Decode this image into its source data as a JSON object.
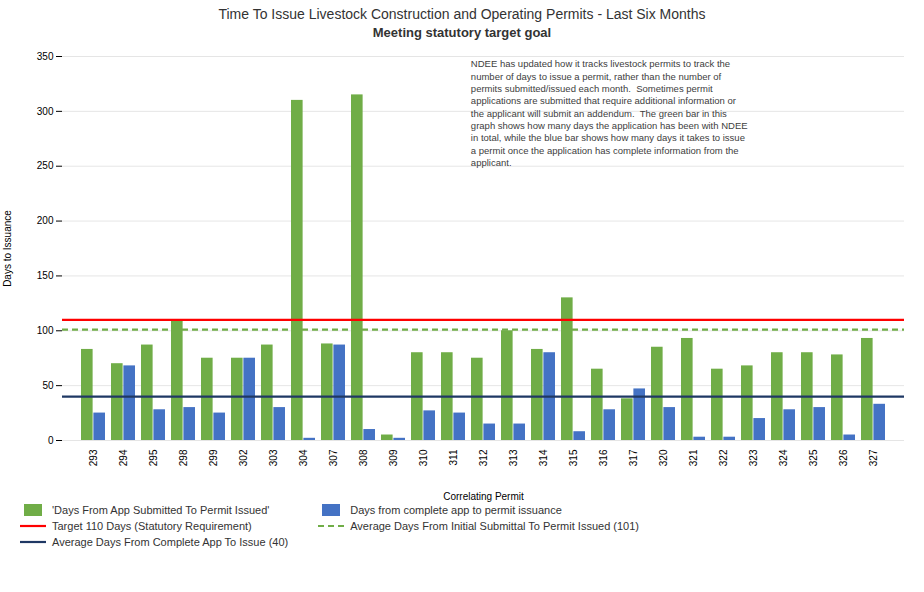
{
  "chart_data": {
    "type": "bar",
    "title": "Time To Issue Livestock Construction and Operating Permits - Last Six Months",
    "subtitle": "Meeting statutory target goal",
    "xlabel": "Correlating Permit",
    "ylabel": "Days to Issuance",
    "categories": [
      "293",
      "294",
      "295",
      "298",
      "299",
      "302",
      "303",
      "304",
      "307",
      "308",
      "309",
      "310",
      "311",
      "312",
      "313",
      "314",
      "315",
      "316",
      "317",
      "320",
      "321",
      "322",
      "323",
      "324",
      "325",
      "326",
      "327"
    ],
    "series": [
      {
        "name": "'Days From App Submitted To Permit Issued'",
        "color": "#70AD47",
        "values": [
          83,
          70,
          87,
          110,
          75,
          75,
          87,
          310,
          88,
          315,
          5,
          80,
          80,
          75,
          100,
          83,
          130,
          65,
          38,
          85,
          93,
          65,
          68,
          80,
          80,
          78,
          93
        ]
      },
      {
        "name": "Days from complete app to permit issuance",
        "color": "#4472C4",
        "values": [
          25,
          68,
          28,
          30,
          25,
          75,
          30,
          2,
          87,
          10,
          2,
          27,
          25,
          15,
          15,
          80,
          8,
          28,
          47,
          30,
          3,
          3,
          20,
          28,
          30,
          5,
          33
        ]
      }
    ],
    "reference_lines": [
      {
        "name": "Target 110 Days (Statutory Requirement)",
        "value": 110,
        "color": "#FF0000",
        "line_style": "solid"
      },
      {
        "name": "Average Days From Initial Submittal To Permit Issued (101)",
        "value": 101,
        "color": "#70AD47",
        "line_style": "dashed"
      },
      {
        "name": "Average Days From Complete App To Issue (40)",
        "value": 40,
        "color": "#1F3864",
        "line_style": "solid"
      }
    ],
    "annotation": "NDEE has updated how it tracks livestock permits to track the\nnumber of days to issue a permit, rather than the number of\npermits submitted/issued each month.  Sometimes permit\napplications are submitted that require additional information or\nthe applicant will submit an addendum.  The green bar in this\ngraph shows how many days the application has been with NDEE\nin total, while the blue bar shows how many days it takes to issue\na permit once the application has complete information from the\napplicant.",
    "ylim": [
      0,
      350
    ],
    "yticks": [
      0,
      50,
      100,
      150,
      200,
      250,
      300,
      350
    ],
    "grid": true,
    "legend": "bottom"
  }
}
